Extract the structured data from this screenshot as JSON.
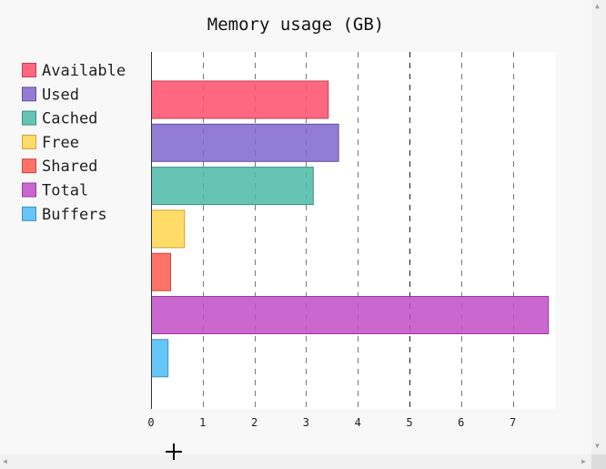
{
  "chart_data": {
    "type": "bar",
    "orientation": "horizontal",
    "title": "Memory usage (GB)",
    "xlabel": "",
    "ylabel": "",
    "xlim": [
      0,
      7.8
    ],
    "x_ticks": [
      0,
      1,
      2,
      3,
      4,
      5,
      6,
      7
    ],
    "grid": "vertical-dashed",
    "legend": "left",
    "categories": [
      "Available",
      "Used",
      "Cached",
      "Free",
      "Shared",
      "Total",
      "Buffers"
    ],
    "values": [
      3.42,
      3.62,
      3.13,
      0.64,
      0.37,
      7.68,
      0.32
    ],
    "colors": [
      "#ff4d6a",
      "#8066cc",
      "#4bbaa8",
      "#ffd54d",
      "#ff5a4d",
      "#c24dc8",
      "#4dbbf7"
    ]
  }
}
